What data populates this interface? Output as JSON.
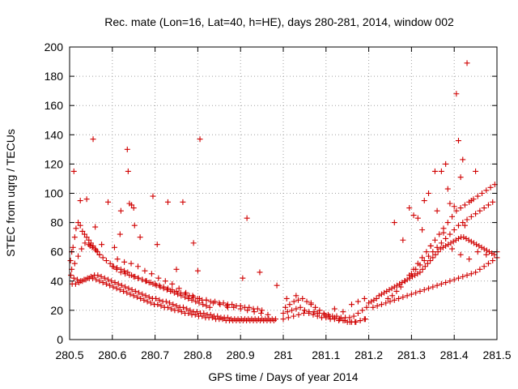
{
  "chart_data": {
    "type": "scatter",
    "title": "Rec. mate (Lon=16, Lat=40, h=HE), days 280-281, 2014, window 002",
    "xlabel": "GPS time / Days of year 2014",
    "ylabel": "STEC from uqrg / TECUs",
    "xlim": [
      280.5,
      281.5
    ],
    "ylim": [
      0,
      200
    ],
    "xticks": [
      "280.5",
      "280.6",
      "280.7",
      "280.8",
      "280.9",
      "281",
      "281.1",
      "281.2",
      "281.3",
      "281.4",
      "281.5"
    ],
    "xtick_values": [
      280.5,
      280.6,
      280.7,
      280.8,
      280.9,
      281.0,
      281.1,
      281.2,
      281.3,
      281.4,
      281.5
    ],
    "yticks": [
      "0",
      "20",
      "40",
      "60",
      "80",
      "100",
      "120",
      "140",
      "160",
      "180",
      "200"
    ],
    "ytick_values": [
      0,
      20,
      40,
      60,
      80,
      100,
      120,
      140,
      160,
      180,
      200
    ],
    "grid": true,
    "marker": "plus",
    "color": "#d00000",
    "series": [
      {
        "x": [
          280.502,
          280.505,
          280.508,
          280.512,
          280.515,
          280.52,
          280.525,
          280.53,
          280.535,
          280.54,
          280.545,
          280.55,
          280.555,
          280.56,
          280.565,
          280.57,
          280.503,
          280.51,
          280.518,
          280.526,
          280.534,
          280.542,
          280.55,
          280.558,
          280.566,
          280.574,
          280.582,
          280.59,
          280.598,
          280.606,
          280.614,
          280.622,
          280.63,
          280.638,
          280.646,
          280.654,
          280.662,
          280.67,
          280.678,
          280.686,
          280.694,
          280.702,
          280.71,
          280.718,
          280.726,
          280.734,
          280.742,
          280.75,
          280.758,
          280.766,
          280.774,
          280.782,
          280.79,
          280.798,
          280.806,
          280.814,
          280.822,
          280.83,
          280.838,
          280.846,
          280.854,
          280.862,
          280.87,
          280.878,
          280.886,
          280.894,
          280.902,
          280.91,
          280.918,
          280.926,
          280.934,
          280.942,
          280.95,
          280.958,
          280.966,
          280.974,
          280.982,
          280.506,
          280.514,
          280.522,
          280.53,
          280.538,
          280.546,
          280.554,
          280.562,
          280.57,
          280.578,
          280.586,
          280.594,
          280.602,
          280.61,
          280.618,
          280.626,
          280.634,
          280.642,
          280.65,
          280.658,
          280.666,
          280.674,
          280.682,
          280.69,
          280.698,
          280.706,
          280.714,
          280.722,
          280.73,
          280.738,
          280.746,
          280.754,
          280.762,
          280.77,
          280.778,
          280.786,
          280.794,
          280.802,
          280.81,
          280.818,
          280.826,
          280.834,
          280.842,
          280.85,
          280.858,
          280.866,
          280.874,
          280.882,
          280.89,
          280.898,
          280.906,
          280.914,
          280.922,
          280.93,
          280.938,
          280.946,
          280.954,
          280.962,
          280.97,
          280.978,
          280.6,
          280.61,
          280.62,
          280.63,
          280.64,
          280.65,
          280.66,
          280.67,
          280.68,
          280.69,
          280.7,
          280.71,
          280.72,
          280.73,
          280.74,
          280.75,
          280.76,
          280.77,
          280.78,
          280.79,
          280.8,
          280.81,
          280.82,
          280.83,
          280.84,
          280.85,
          280.86,
          280.87,
          280.88,
          280.89,
          280.9,
          280.91,
          280.92,
          280.93,
          280.94,
          280.95,
          280.612,
          280.628,
          280.644,
          280.66,
          280.676,
          280.692,
          280.708,
          280.724,
          280.74,
          280.756,
          280.772,
          280.788,
          280.804,
          280.82,
          280.836,
          280.852,
          280.868,
          280.884,
          280.9,
          280.916,
          280.932,
          280.948,
          280.964,
          280.505,
          280.512,
          280.52,
          280.528,
          280.536,
          280.545,
          280.553,
          280.562,
          280.57,
          280.578,
          280.586,
          280.595,
          280.603,
          280.611,
          280.62,
          280.628,
          280.636,
          280.645,
          280.653,
          280.661,
          280.67,
          280.678,
          280.686,
          280.695,
          280.703,
          280.712,
          280.72,
          280.728,
          280.736,
          280.745,
          280.753,
          280.761,
          280.77,
          280.778,
          280.786,
          280.795,
          280.803,
          280.812,
          280.82,
          280.828,
          280.51,
          280.555,
          280.635,
          280.637,
          280.64,
          280.652,
          280.59,
          280.62,
          280.695,
          280.73,
          280.765,
          280.79,
          280.805,
          280.905,
          280.915,
          280.945,
          280.985,
          280.525,
          280.54,
          280.548,
          280.56,
          280.575,
          280.605,
          280.618,
          280.645,
          280.65,
          280.665,
          280.705,
          280.75,
          280.8,
          280.87,
          281.0,
          281.01,
          281.02,
          281.03,
          281.04,
          281.05,
          281.06,
          281.07,
          281.08,
          281.09,
          281.1,
          281.11,
          281.12,
          281.13,
          281.14,
          281.15,
          281.16,
          281.17,
          281.18,
          281.19,
          281.005,
          281.015,
          281.025,
          281.035,
          281.045,
          281.055,
          281.065,
          281.075,
          281.085,
          281.095,
          281.105,
          281.115,
          281.125,
          281.135,
          281.145,
          281.155,
          281.165,
          281.175,
          281.185,
          281.195,
          281.0,
          281.012,
          281.024,
          281.036,
          281.048,
          281.06,
          281.072,
          281.084,
          281.096,
          281.108,
          281.12,
          281.132,
          281.144,
          281.156,
          281.168,
          281.18,
          281.192,
          281.008,
          281.03,
          281.05,
          281.065,
          281.08,
          281.1,
          281.12,
          281.14,
          281.16,
          281.175,
          281.19,
          281.2,
          281.206,
          281.212,
          281.218,
          281.224,
          281.23,
          281.236,
          281.242,
          281.248,
          281.254,
          281.26,
          281.266,
          281.272,
          281.278,
          281.284,
          281.29,
          281.296,
          281.302,
          281.308,
          281.314,
          281.32,
          281.326,
          281.332,
          281.338,
          281.344,
          281.35,
          281.356,
          281.362,
          281.368,
          281.374,
          281.38,
          281.386,
          281.392,
          281.398,
          281.404,
          281.41,
          281.416,
          281.422,
          281.428,
          281.434,
          281.44,
          281.446,
          281.452,
          281.458,
          281.464,
          281.47,
          281.476,
          281.482,
          281.488,
          281.494,
          281.5,
          281.21,
          281.22,
          281.23,
          281.24,
          281.25,
          281.26,
          281.27,
          281.28,
          281.29,
          281.3,
          281.31,
          281.32,
          281.33,
          281.34,
          281.35,
          281.36,
          281.37,
          281.38,
          281.39,
          281.4,
          281.41,
          281.42,
          281.43,
          281.44,
          281.45,
          281.46,
          281.47,
          281.48,
          281.49,
          281.5,
          281.245,
          281.255,
          281.265,
          281.275,
          281.285,
          281.295,
          281.305,
          281.315,
          281.325,
          281.335,
          281.345,
          281.355,
          281.365,
          281.375,
          281.385,
          281.395,
          281.405,
          281.415,
          281.425,
          281.435,
          281.445,
          281.455,
          281.465,
          281.475,
          281.485,
          281.495,
          281.3,
          281.31,
          281.32,
          281.33,
          281.34,
          281.35,
          281.36,
          281.37,
          281.38,
          281.39,
          281.4,
          281.41,
          281.42,
          281.43,
          281.44,
          281.45,
          281.46,
          281.47,
          281.48,
          281.49,
          281.33,
          281.34,
          281.36,
          281.37,
          281.38,
          281.385,
          281.39,
          281.4,
          281.405,
          281.41,
          281.415,
          281.42,
          281.425,
          281.43,
          281.44,
          281.45,
          281.26,
          281.28,
          281.295,
          281.305,
          281.315,
          281.325,
          281.345,
          281.355,
          281.375,
          281.395,
          281.415,
          281.435,
          281.455,
          281.475
        ],
        "y": [
          54,
          60,
          63,
          70,
          76,
          80,
          78,
          74,
          72,
          70,
          68,
          66,
          64,
          62,
          60,
          58,
          44,
          42,
          41,
          40,
          41,
          42,
          43,
          44,
          44,
          43,
          42,
          41,
          40,
          39,
          38,
          37,
          36,
          35,
          34,
          33,
          32,
          31,
          30,
          29,
          28,
          28,
          27,
          26,
          26,
          25,
          24,
          23,
          22,
          22,
          21,
          20,
          19,
          19,
          18,
          18,
          17,
          17,
          16,
          16,
          15,
          15,
          15,
          14,
          14,
          14,
          14,
          14,
          14,
          14,
          14,
          14,
          14,
          14,
          14,
          14,
          14,
          38,
          38,
          39,
          40,
          41,
          42,
          42,
          41,
          40,
          39,
          38,
          37,
          36,
          35,
          34,
          33,
          32,
          31,
          30,
          29,
          28,
          27,
          26,
          25,
          24,
          24,
          23,
          22,
          22,
          21,
          20,
          20,
          19,
          18,
          18,
          17,
          17,
          16,
          16,
          15,
          15,
          15,
          14,
          14,
          14,
          13,
          13,
          13,
          13,
          13,
          13,
          13,
          13,
          13,
          13,
          13,
          13,
          13,
          13,
          13,
          50,
          48,
          46,
          45,
          44,
          43,
          42,
          41,
          40,
          39,
          38,
          37,
          36,
          35,
          34,
          33,
          32,
          31,
          30,
          29,
          28,
          27,
          27,
          26,
          26,
          25,
          25,
          24,
          24,
          23,
          23,
          22,
          22,
          21,
          21,
          20,
          55,
          53,
          52,
          50,
          47,
          45,
          42,
          40,
          38,
          35,
          32,
          30,
          28,
          27,
          25,
          24,
          23,
          22,
          21,
          20,
          19,
          18,
          17,
          48,
          52,
          57,
          62,
          66,
          65,
          63,
          61,
          58,
          56,
          54,
          52,
          50,
          49,
          48,
          47,
          46,
          44,
          43,
          42,
          41,
          40,
          39,
          38,
          37,
          36,
          35,
          34,
          33,
          32,
          31,
          30,
          29,
          28,
          27,
          26,
          25,
          24,
          23,
          22,
          115,
          137,
          130,
          115,
          93,
          78,
          94,
          88,
          98,
          94,
          94,
          66,
          137,
          42,
          83,
          46,
          37,
          95,
          96,
          64,
          77,
          65,
          63,
          72,
          92,
          90,
          70,
          65,
          48,
          47,
          22,
          18,
          19,
          20,
          21,
          22,
          20,
          18,
          17,
          16,
          15,
          15,
          14,
          14,
          13,
          13,
          12,
          12,
          12,
          13,
          14,
          22,
          24,
          26,
          27,
          28,
          26,
          25,
          22,
          20,
          18,
          17,
          16,
          16,
          15,
          15,
          15,
          16,
          18,
          20,
          22,
          14,
          15,
          16,
          17,
          18,
          19,
          19,
          18,
          17,
          16,
          15,
          14,
          13,
          12,
          12,
          13,
          14,
          28,
          30,
          20,
          24,
          18,
          16,
          21,
          19,
          24,
          26,
          28,
          25,
          26,
          27,
          28,
          30,
          31,
          32,
          33,
          34,
          35,
          36,
          37,
          38,
          39,
          40,
          41,
          42,
          43,
          44,
          45,
          46,
          48,
          50,
          52,
          54,
          56,
          58,
          60,
          62,
          63,
          64,
          65,
          66,
          67,
          68,
          69,
          70,
          70,
          69,
          68,
          67,
          66,
          65,
          64,
          63,
          62,
          61,
          60,
          59,
          58,
          60,
          22,
          23,
          24,
          25,
          26,
          27,
          28,
          29,
          30,
          31,
          32,
          33,
          34,
          35,
          36,
          37,
          38,
          39,
          40,
          41,
          42,
          43,
          44,
          45,
          46,
          48,
          50,
          52,
          54,
          56,
          28,
          30,
          33,
          36,
          40,
          44,
          48,
          52,
          56,
          60,
          64,
          68,
          72,
          76,
          80,
          84,
          88,
          90,
          92,
          94,
          96,
          98,
          100,
          102,
          104,
          106,
          45,
          48,
          51,
          54,
          57,
          60,
          63,
          66,
          69,
          72,
          75,
          78,
          80,
          82,
          84,
          86,
          88,
          90,
          92,
          94,
          95,
          100,
          88,
          115,
          120,
          103,
          93,
          91,
          168,
          136,
          111,
          123,
          78,
          189,
          95,
          115,
          80,
          68,
          90,
          85,
          83,
          75,
          64,
          115,
          73,
          62,
          58,
          55,
          60,
          58
        ]
      }
    ]
  }
}
